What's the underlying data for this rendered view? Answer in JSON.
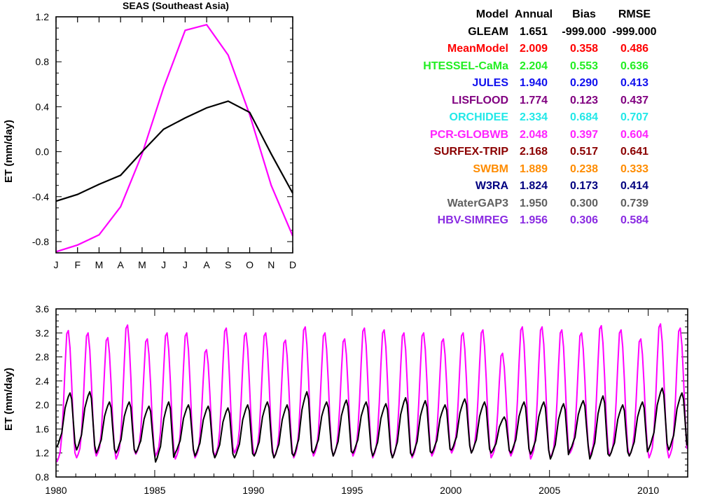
{
  "chart_data": [
    {
      "type": "line",
      "title": "SEAS (Southeast Asia)",
      "xlabel": "",
      "ylabel": "ET (mm/day)",
      "categories": [
        "J",
        "F",
        "M",
        "A",
        "M",
        "J",
        "J",
        "A",
        "S",
        "O",
        "N",
        "D"
      ],
      "ylim": [
        -0.9,
        1.2
      ],
      "yticks": [
        "1.2",
        "0.8",
        "0.4",
        "0.0",
        "-0.4",
        "-0.8"
      ],
      "grid": false,
      "series": [
        {
          "color": "#ff00ff",
          "values": [
            -0.89,
            -0.83,
            -0.74,
            -0.49,
            -0.02,
            0.57,
            1.08,
            1.13,
            0.86,
            0.33,
            -0.3,
            -0.75
          ]
        },
        {
          "color": "#000000",
          "values": [
            -0.44,
            -0.38,
            -0.29,
            -0.21,
            0.0,
            0.2,
            0.3,
            0.39,
            0.45,
            0.35,
            -0.02,
            -0.37
          ]
        }
      ]
    },
    {
      "type": "line",
      "title": "",
      "xlabel": "",
      "ylabel": "ET (mm/day)",
      "xlim": [
        1980,
        2012
      ],
      "ylim": [
        0.8,
        3.6
      ],
      "xticks": [
        "1980",
        "1985",
        "1990",
        "1995",
        "2000",
        "2005",
        "2010"
      ],
      "yticks": [
        "3.6",
        "3.2",
        "2.8",
        "2.4",
        "2.0",
        "1.6",
        "1.2",
        "0.8"
      ],
      "grid": false,
      "annual_peaks": {
        "years": [
          1980,
          1981,
          1982,
          1983,
          1984,
          1985,
          1986,
          1987,
          1988,
          1989,
          1990,
          1991,
          1992,
          1993,
          1994,
          1995,
          1996,
          1997,
          1998,
          1999,
          2000,
          2001,
          2002,
          2003,
          2004,
          2005,
          2006,
          2007,
          2008,
          2009,
          2010,
          2011
        ],
        "magenta_max": [
          3.24,
          3.2,
          3.12,
          3.33,
          3.1,
          3.2,
          3.2,
          2.92,
          3.28,
          3.2,
          3.2,
          3.08,
          3.3,
          3.2,
          3.1,
          3.28,
          3.25,
          3.2,
          3.2,
          3.1,
          3.2,
          3.25,
          2.86,
          3.3,
          3.3,
          3.25,
          3.2,
          3.32,
          3.25,
          3.1,
          3.35,
          3.28
        ],
        "magenta_min": [
          1.05,
          1.12,
          1.15,
          1.1,
          1.18,
          1.15,
          1.1,
          1.12,
          1.15,
          1.2,
          1.15,
          1.12,
          1.12,
          1.15,
          1.15,
          1.15,
          1.12,
          1.12,
          1.12,
          1.15,
          1.2,
          1.2,
          1.12,
          1.15,
          1.1,
          1.12,
          1.2,
          1.15,
          1.15,
          1.15,
          1.12,
          1.12
        ],
        "black_max": [
          2.2,
          2.22,
          2.05,
          2.05,
          1.98,
          2.05,
          2.0,
          1.98,
          1.95,
          2.0,
          2.05,
          2.0,
          2.22,
          2.05,
          2.08,
          2.05,
          2.02,
          2.12,
          2.07,
          2.0,
          2.1,
          2.05,
          1.8,
          2.05,
          2.05,
          2.02,
          2.07,
          2.15,
          2.0,
          2.05,
          2.28,
          2.2
        ],
        "black_min": [
          1.3,
          1.25,
          1.2,
          1.2,
          1.2,
          1.05,
          1.2,
          1.15,
          1.12,
          1.12,
          1.15,
          1.12,
          1.15,
          1.2,
          1.15,
          1.2,
          1.15,
          1.12,
          1.15,
          1.2,
          1.25,
          1.2,
          1.2,
          1.2,
          1.18,
          1.1,
          1.25,
          1.1,
          1.15,
          1.15,
          1.28,
          1.25
        ]
      },
      "series": [
        {
          "color": "#ff00ff"
        },
        {
          "color": "#000000"
        }
      ]
    }
  ],
  "stats_table": {
    "headers": {
      "model": "Model",
      "annual": "Annual",
      "bias": "Bias",
      "rmse": "RMSE"
    },
    "rows": [
      {
        "model": "GLEAM",
        "annual": "1.651",
        "bias": "-999.000",
        "rmse": "-999.000",
        "color": "#000000"
      },
      {
        "model": "MeanModel",
        "annual": "2.009",
        "bias": "0.358",
        "rmse": "0.486",
        "color": "#ff0000"
      },
      {
        "model": "HTESSEL-CaMa",
        "annual": "2.204",
        "bias": "0.553",
        "rmse": "0.636",
        "color": "#22ee22"
      },
      {
        "model": "JULES",
        "annual": "1.940",
        "bias": "0.290",
        "rmse": "0.413",
        "color": "#1010ee"
      },
      {
        "model": "LISFLOOD",
        "annual": "1.774",
        "bias": "0.123",
        "rmse": "0.437",
        "color": "#800080"
      },
      {
        "model": "ORCHIDEE",
        "annual": "2.334",
        "bias": "0.684",
        "rmse": "0.707",
        "color": "#22e8e8"
      },
      {
        "model": "PCR-GLOBWB",
        "annual": "2.048",
        "bias": "0.397",
        "rmse": "0.604",
        "color": "#ff22ff"
      },
      {
        "model": "SURFEX-TRIP",
        "annual": "2.168",
        "bias": "0.517",
        "rmse": "0.641",
        "color": "#8b0000"
      },
      {
        "model": "SWBM",
        "annual": "1.889",
        "bias": "0.238",
        "rmse": "0.333",
        "color": "#ff8c00"
      },
      {
        "model": "W3RA",
        "annual": "1.824",
        "bias": "0.173",
        "rmse": "0.414",
        "color": "#000080"
      },
      {
        "model": "WaterGAP3",
        "annual": "1.950",
        "bias": "0.300",
        "rmse": "0.739",
        "color": "#606060"
      },
      {
        "model": "HBV-SIMREG",
        "annual": "1.956",
        "bias": "0.306",
        "rmse": "0.584",
        "color": "#8a2be2"
      }
    ]
  }
}
